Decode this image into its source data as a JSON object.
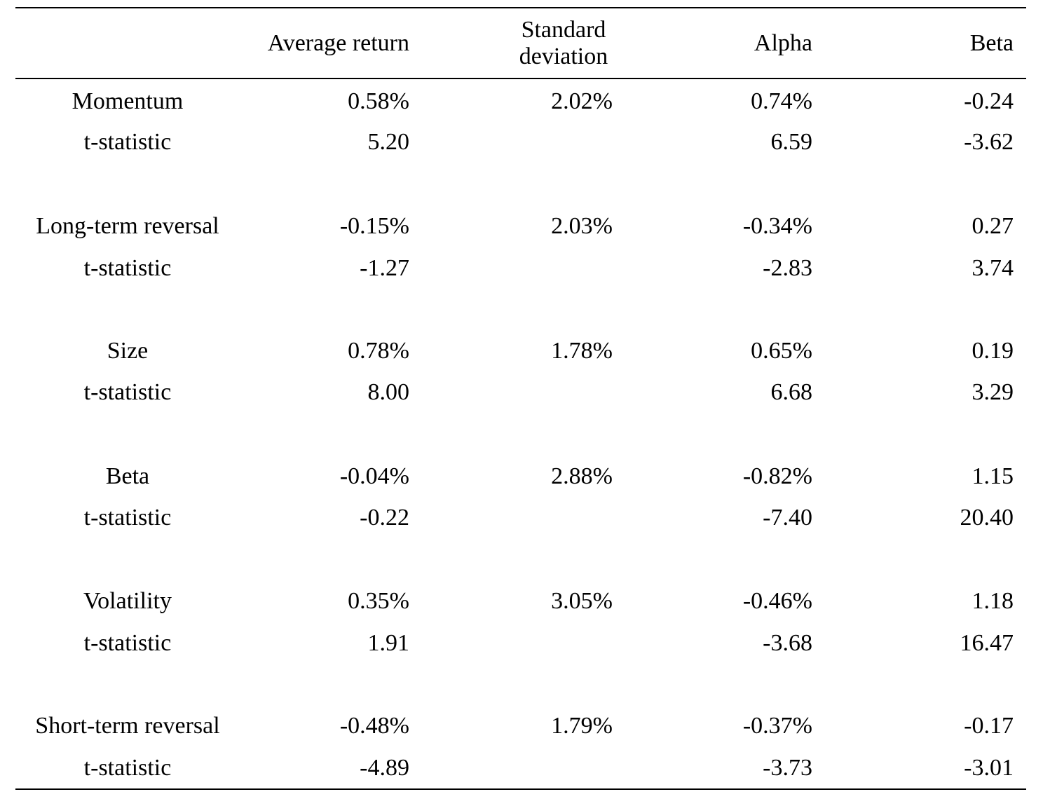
{
  "table": {
    "headers": {
      "average_return": "Average return",
      "standard_deviation_line1": "Standard",
      "standard_deviation_line2": "deviation",
      "alpha": "Alpha",
      "beta": "Beta"
    },
    "rows": [
      {
        "label": "Momentum",
        "avg": "0.58%",
        "sd": "2.02%",
        "alpha": "0.74%",
        "beta": "-0.24",
        "t_label": "t-statistic",
        "t_avg": "5.20",
        "t_alpha": "6.59",
        "t_beta": "-3.62"
      },
      {
        "label": "Long-term reversal",
        "avg": "-0.15%",
        "sd": "2.03%",
        "alpha": "-0.34%",
        "beta": "0.27",
        "t_label": "t-statistic",
        "t_avg": "-1.27",
        "t_alpha": "-2.83",
        "t_beta": "3.74"
      },
      {
        "label": "Size",
        "avg": "0.78%",
        "sd": "1.78%",
        "alpha": "0.65%",
        "beta": "0.19",
        "t_label": "t-statistic",
        "t_avg": "8.00",
        "t_alpha": "6.68",
        "t_beta": "3.29"
      },
      {
        "label": "Beta",
        "avg": "-0.04%",
        "sd": "2.88%",
        "alpha": "-0.82%",
        "beta": "1.15",
        "t_label": "t-statistic",
        "t_avg": "-0.22",
        "t_alpha": "-7.40",
        "t_beta": "20.40"
      },
      {
        "label": "Volatility",
        "avg": "0.35%",
        "sd": "3.05%",
        "alpha": "-0.46%",
        "beta": "1.18",
        "t_label": "t-statistic",
        "t_avg": "1.91",
        "t_alpha": "-3.68",
        "t_beta": "16.47"
      },
      {
        "label": "Short-term reversal",
        "avg": "-0.48%",
        "sd": "1.79%",
        "alpha": "-0.37%",
        "beta": "-0.17",
        "t_label": "t-statistic",
        "t_avg": "-4.89",
        "t_alpha": "-3.73",
        "t_beta": "-3.01"
      }
    ]
  }
}
